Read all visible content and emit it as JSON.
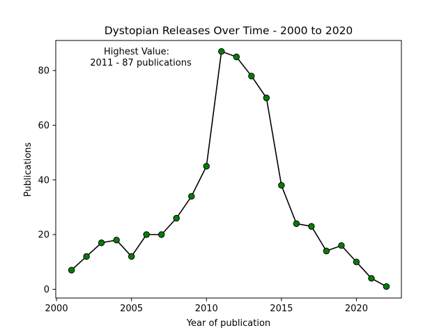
{
  "chart_data": {
    "type": "line",
    "title": "Dystopian Releases Over Time - 2000 to 2020",
    "xlabel": "Year of publication",
    "ylabel": "Publications",
    "xlim": [
      1999.95,
      2023
    ],
    "ylim": [
      -3.2,
      91
    ],
    "xticks": [
      2000,
      2005,
      2010,
      2015,
      2020
    ],
    "yticks": [
      0,
      20,
      40,
      60,
      80
    ],
    "grid": false,
    "line_color": "#000000",
    "marker_color": "#008000",
    "marker_edge_color": "#000000",
    "annotation": {
      "line1": "Highest Value:",
      "line2": "2011 - 87 publications"
    },
    "series": [
      {
        "x": [
          2001,
          2002,
          2003,
          2004,
          2005,
          2006,
          2007,
          2008,
          2009,
          2010,
          2011,
          2012,
          2013,
          2014,
          2015,
          2016,
          2017,
          2018,
          2019,
          2020,
          2021,
          2022
        ],
        "values": [
          7,
          12,
          17,
          18,
          12,
          20,
          20,
          26,
          34,
          45,
          87,
          85,
          78,
          70,
          38,
          24,
          23,
          14,
          16,
          10,
          4,
          1
        ]
      }
    ]
  }
}
